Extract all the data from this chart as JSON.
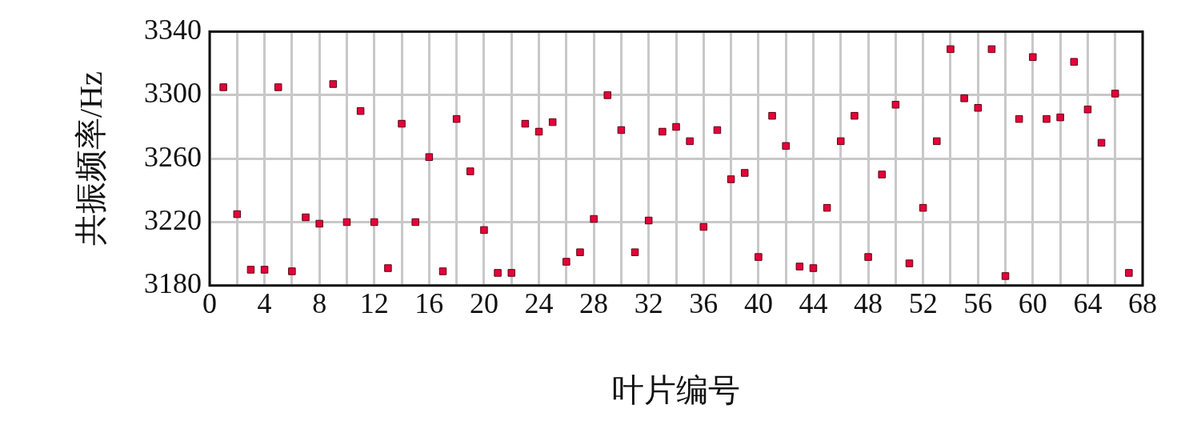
{
  "chart_data": {
    "type": "scatter",
    "xlabel": "叶片编号",
    "ylabel": "共振频率/Hz",
    "x": [
      1,
      2,
      3,
      4,
      5,
      6,
      7,
      8,
      9,
      10,
      11,
      12,
      13,
      14,
      15,
      16,
      17,
      18,
      19,
      20,
      21,
      22,
      23,
      24,
      25,
      26,
      27,
      28,
      29,
      30,
      31,
      32,
      33,
      34,
      35,
      36,
      37,
      38,
      39,
      40,
      41,
      42,
      43,
      44,
      45,
      46,
      47,
      48,
      49,
      50,
      51,
      52,
      53,
      54,
      55,
      56,
      57,
      58,
      59,
      60,
      61,
      62,
      63,
      64,
      65,
      66,
      67
    ],
    "series": [
      {
        "color": "#e6003a",
        "values": [
          3305,
          3225,
          3190,
          3190,
          3305,
          3189,
          3223,
          3219,
          3307,
          3220,
          3290,
          3220,
          3191,
          3282,
          3220,
          3261,
          3189,
          3285,
          3252,
          3215,
          3188,
          3188,
          3282,
          3277,
          3283,
          3195,
          3201,
          3222,
          3300,
          3278,
          3201,
          3221,
          3277,
          3280,
          3271,
          3217,
          3278,
          3247,
          3251,
          3198,
          3287,
          3268,
          3192,
          3191,
          3229,
          3271,
          3287,
          3198,
          3250,
          3294,
          3194,
          3229,
          3271,
          3329,
          3298,
          3292,
          3329,
          3186,
          3285,
          3324,
          3285,
          3286,
          3321,
          3291,
          3270,
          3301,
          3188
        ]
      }
    ],
    "xlim": [
      0,
      68
    ],
    "xticks": [
      0,
      {
        "value": 2,
        "label": null
      },
      4,
      {
        "value": 6,
        "label": null
      },
      8,
      {
        "value": 10,
        "label": null
      },
      12,
      {
        "value": 14,
        "label": null
      },
      16,
      {
        "value": 18,
        "label": null
      },
      20,
      {
        "value": 22,
        "label": null
      },
      24,
      {
        "value": 26,
        "label": null
      },
      28,
      {
        "value": 30,
        "label": null
      },
      32,
      {
        "value": 34,
        "label": null
      },
      36,
      {
        "value": 38,
        "label": null
      },
      40,
      {
        "value": 42,
        "label": null
      },
      44,
      {
        "value": 46,
        "label": null
      },
      48,
      {
        "value": 50,
        "label": null
      },
      52,
      {
        "value": 54,
        "label": null
      },
      56,
      {
        "value": 58,
        "label": null
      },
      60,
      {
        "value": 62,
        "label": null
      },
      64,
      {
        "value": 66,
        "label": null
      },
      68
    ],
    "ylim": [
      3180,
      3340
    ],
    "yticks": [
      3180,
      3220,
      3260,
      3300,
      3340
    ],
    "grid": true,
    "legend": false,
    "marker": "square"
  }
}
